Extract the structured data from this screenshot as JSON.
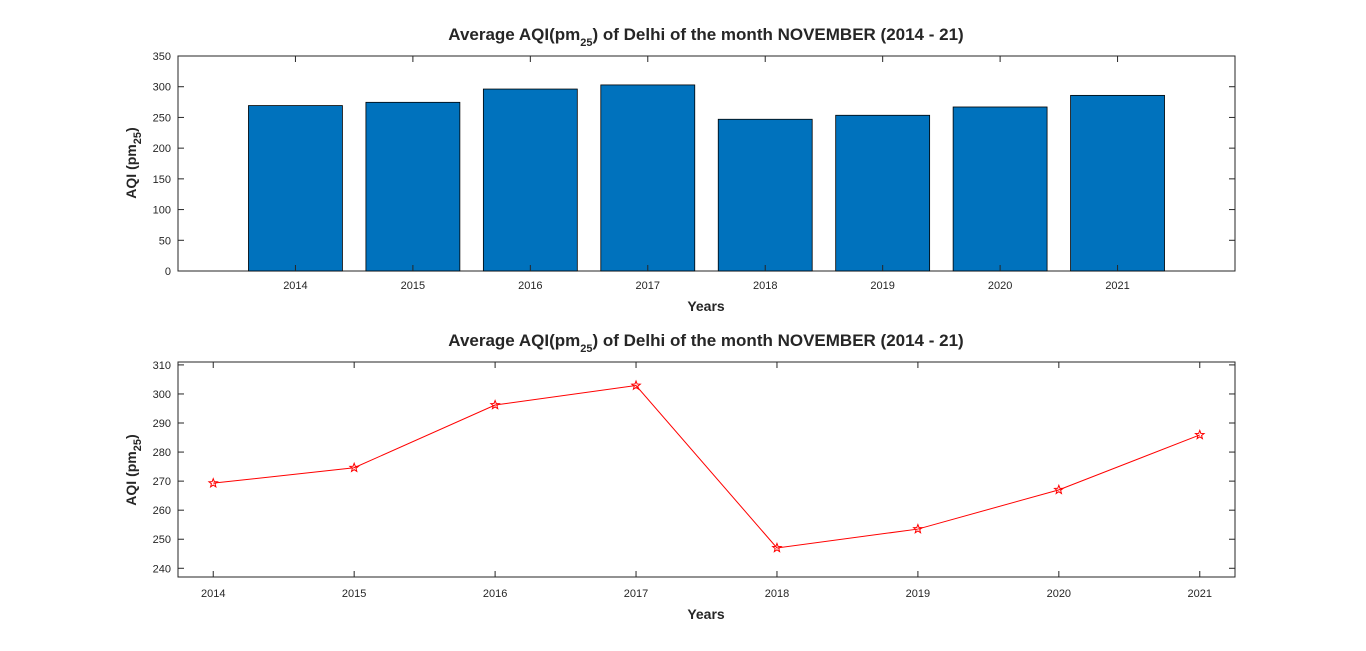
{
  "chart_data": [
    {
      "type": "bar",
      "title_main": "Average AQI(pm",
      "title_sub": "25",
      "title_rest": ") of Delhi of the month NOVEMBER (2014 - 21)",
      "xlabel": "Years",
      "ylabel_main": "AQI (pm",
      "ylabel_sub": "25",
      "ylabel_rest": ")",
      "categories": [
        "2014",
        "2015",
        "2016",
        "2017",
        "2018",
        "2019",
        "2020",
        "2021"
      ],
      "values": [
        269.3,
        274.6,
        296.2,
        302.9,
        247.0,
        253.5,
        267.0,
        285.9
      ],
      "ylim": [
        0,
        350
      ],
      "yticks": [
        0,
        50,
        100,
        150,
        200,
        250,
        300,
        350
      ],
      "xlim": [
        2013,
        2022
      ],
      "color": "#0072BD",
      "edge_color": "#000000",
      "grid": false
    },
    {
      "type": "line",
      "title_main": "Average AQI(pm",
      "title_sub": "25",
      "title_rest": ") of Delhi of the month NOVEMBER (2014 - 21)",
      "xlabel": "Years",
      "ylabel_main": "AQI (pm",
      "ylabel_sub": "25",
      "ylabel_rest": ")",
      "x": [
        2014,
        2015,
        2016,
        2017,
        2018,
        2019,
        2020,
        2021
      ],
      "xticks": [
        "2014",
        "2015",
        "2016",
        "2017",
        "2018",
        "2019",
        "2020",
        "2021"
      ],
      "values": [
        269.3,
        274.6,
        296.2,
        302.9,
        247.0,
        253.5,
        267.0,
        285.9
      ],
      "ylim": [
        237,
        311
      ],
      "yticks": [
        240,
        250,
        260,
        270,
        280,
        290,
        300,
        310
      ],
      "xlim": [
        2013.75,
        2021.25
      ],
      "marker": "pentagram",
      "color": "#FF0000",
      "grid": false
    }
  ]
}
